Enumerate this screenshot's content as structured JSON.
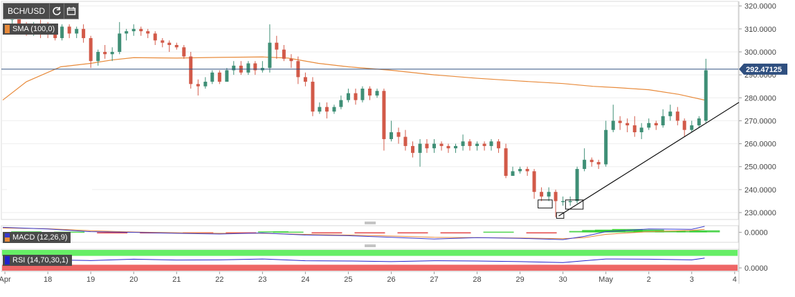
{
  "toolbar": {
    "symbol": "BCH/USD",
    "reload_icon": "refresh-icon",
    "calendar_icon": "calendar-icon"
  },
  "indicators": {
    "sma_label": "SMA (100,0)",
    "macd_label": "MACD (12,26,9)",
    "rsi_label": "RSI (14,70,30,1)"
  },
  "colors": {
    "up": "#3f8f76",
    "down": "#d25a49",
    "sma": "#e88a3a",
    "price_line": "#2f4f7f",
    "macd_line": "#3838cc",
    "signal_line": "#e88a3a",
    "hist_pos": "#33cc33",
    "hist_neg": "#dd2222",
    "rsi_line": "#2222cc",
    "rsi_top": "#66ee66",
    "rsi_bottom": "#ee6666"
  },
  "chart_data": {
    "type": "candlestick",
    "title": "BCH/USD",
    "price_axis": {
      "ticks": [
        "320.0000",
        "310.0000",
        "300.0000",
        "290.0000",
        "280.0000",
        "270.0000",
        "260.0000",
        "250.0000",
        "240.0000",
        "230.0000"
      ],
      "tick_values": [
        320,
        310,
        300,
        290,
        280,
        270,
        260,
        250,
        240,
        230
      ],
      "ylim": [
        227,
        322
      ]
    },
    "current_price": {
      "value": 292.47125,
      "label": "292.47125"
    },
    "x_axis": {
      "labels": [
        "Apr",
        "18",
        "19",
        "20",
        "21",
        "22",
        "23",
        "24",
        "25",
        "26",
        "27",
        "28",
        "29",
        "30",
        "May",
        "2",
        "3",
        "4"
      ],
      "label_x": [
        17,
        18,
        19,
        20,
        21,
        22,
        23,
        24,
        25,
        26,
        27,
        28,
        29,
        30,
        31,
        32,
        33,
        34
      ],
      "xlim": [
        16.95,
        34.1
      ]
    },
    "candles": [
      [
        17.0,
        316,
        317,
        314,
        319
      ],
      [
        17.17,
        314,
        316,
        312,
        317
      ],
      [
        17.33,
        316,
        312,
        310,
        317
      ],
      [
        17.5,
        312,
        310,
        307,
        313
      ],
      [
        17.67,
        310,
        312,
        307,
        313
      ],
      [
        17.83,
        312,
        309,
        306,
        314
      ],
      [
        18.0,
        311,
        308,
        306,
        313
      ],
      [
        18.17,
        308,
        306,
        305,
        310
      ],
      [
        18.33,
        306,
        311,
        305,
        312
      ],
      [
        18.5,
        311,
        308,
        306,
        312
      ],
      [
        18.67,
        308,
        310,
        306,
        311
      ],
      [
        18.83,
        310,
        306,
        304,
        312
      ],
      [
        19.0,
        306,
        296,
        293,
        307
      ],
      [
        19.17,
        296,
        300,
        294,
        301
      ],
      [
        19.33,
        300,
        299,
        297,
        303
      ],
      [
        19.5,
        299,
        300,
        296,
        302
      ],
      [
        19.67,
        300,
        308,
        299,
        313
      ],
      [
        19.83,
        308,
        309,
        305,
        310
      ],
      [
        20.0,
        309,
        310,
        307,
        312
      ],
      [
        20.17,
        310,
        309,
        307,
        311
      ],
      [
        20.33,
        309,
        308,
        306,
        310
      ],
      [
        20.5,
        308,
        305,
        303,
        309
      ],
      [
        20.67,
        305,
        304,
        302,
        306
      ],
      [
        20.83,
        304,
        303,
        300,
        305
      ],
      [
        21.0,
        303,
        302,
        301,
        304
      ],
      [
        21.17,
        302,
        298,
        297,
        303
      ],
      [
        21.33,
        298,
        286,
        284,
        300
      ],
      [
        21.5,
        286,
        285,
        281,
        288
      ],
      [
        21.67,
        285,
        287,
        284,
        289
      ],
      [
        21.83,
        287,
        291,
        286,
        292
      ],
      [
        22.0,
        291,
        287,
        286,
        292
      ],
      [
        22.17,
        287,
        292,
        287,
        293
      ],
      [
        22.33,
        292,
        294,
        290,
        296
      ],
      [
        22.5,
        294,
        291,
        290,
        296
      ],
      [
        22.67,
        291,
        295,
        290,
        296
      ],
      [
        22.83,
        295,
        292,
        290,
        296
      ],
      [
        23.0,
        292,
        293,
        291,
        296
      ],
      [
        23.17,
        293,
        304,
        291,
        312
      ],
      [
        23.33,
        304,
        301,
        297,
        307
      ],
      [
        23.5,
        301,
        297,
        296,
        303
      ],
      [
        23.67,
        297,
        296,
        293,
        299
      ],
      [
        23.83,
        296,
        289,
        286,
        298
      ],
      [
        24.0,
        289,
        287,
        285,
        291
      ],
      [
        24.17,
        287,
        274,
        272,
        289
      ],
      [
        24.33,
        274,
        276,
        273,
        278
      ],
      [
        24.5,
        276,
        274,
        271,
        278
      ],
      [
        24.67,
        274,
        276,
        273,
        277
      ],
      [
        24.83,
        276,
        279,
        275,
        281
      ],
      [
        25.0,
        279,
        282,
        278,
        284
      ],
      [
        25.17,
        282,
        279,
        277,
        284
      ],
      [
        25.33,
        279,
        284,
        278,
        285
      ],
      [
        25.5,
        284,
        281,
        279,
        285
      ],
      [
        25.67,
        281,
        283,
        280,
        284
      ],
      [
        25.83,
        283,
        262,
        257,
        284
      ],
      [
        26.0,
        262,
        265,
        261,
        270
      ],
      [
        26.17,
        265,
        263,
        260,
        267
      ],
      [
        26.33,
        263,
        259,
        257,
        266
      ],
      [
        26.5,
        259,
        256,
        254,
        261
      ],
      [
        26.67,
        256,
        260,
        250,
        262
      ],
      [
        26.83,
        260,
        258,
        256,
        262
      ],
      [
        27.0,
        258,
        260,
        256,
        262
      ],
      [
        27.17,
        260,
        259,
        257,
        261
      ],
      [
        27.33,
        259,
        258,
        256,
        260
      ],
      [
        27.5,
        258,
        259,
        256,
        260
      ],
      [
        27.67,
        259,
        261,
        257,
        264
      ],
      [
        27.83,
        261,
        259,
        257,
        262
      ],
      [
        28.0,
        259,
        260,
        257,
        261
      ],
      [
        28.17,
        260,
        259,
        257,
        261
      ],
      [
        28.33,
        259,
        261,
        257,
        262
      ],
      [
        28.5,
        261,
        258,
        256,
        262
      ],
      [
        28.67,
        258,
        246,
        245,
        260
      ],
      [
        28.83,
        246,
        248,
        246,
        250
      ],
      [
        29.0,
        248,
        249,
        247,
        250
      ],
      [
        29.17,
        249,
        248,
        246,
        250
      ],
      [
        29.33,
        248,
        239,
        236,
        249
      ],
      [
        29.5,
        239,
        237,
        235,
        241
      ],
      [
        29.67,
        237,
        239,
        235,
        241
      ],
      [
        29.83,
        239,
        235,
        228,
        240
      ],
      [
        30.0,
        235,
        235,
        233,
        237
      ],
      [
        30.17,
        235,
        235,
        233,
        237
      ],
      [
        30.33,
        235,
        249,
        234,
        250
      ],
      [
        30.5,
        249,
        253,
        248,
        258
      ],
      [
        30.67,
        253,
        252,
        250,
        254
      ],
      [
        30.83,
        252,
        251,
        249,
        253
      ],
      [
        31.0,
        251,
        266,
        250,
        270
      ],
      [
        31.17,
        266,
        270,
        265,
        277
      ],
      [
        31.33,
        270,
        269,
        266,
        272
      ],
      [
        31.5,
        269,
        268,
        265,
        271
      ],
      [
        31.67,
        268,
        265,
        263,
        272
      ],
      [
        31.83,
        265,
        267,
        262,
        269
      ],
      [
        32.0,
        267,
        269,
        266,
        271
      ],
      [
        32.17,
        269,
        268,
        266,
        270
      ],
      [
        32.33,
        268,
        272,
        267,
        275
      ],
      [
        32.5,
        272,
        274,
        270,
        277
      ],
      [
        32.67,
        274,
        270,
        268,
        276
      ],
      [
        32.83,
        270,
        266,
        263,
        271
      ],
      [
        33.0,
        266,
        268,
        265,
        270
      ],
      [
        33.17,
        268,
        271,
        267,
        272
      ],
      [
        33.33,
        270,
        292,
        269,
        297
      ]
    ],
    "sma": {
      "name": "SMA (100,0)",
      "points": [
        [
          16.95,
          279
        ],
        [
          17.5,
          287
        ],
        [
          18.3,
          293.5
        ],
        [
          19.0,
          295
        ],
        [
          19.5,
          296.5
        ],
        [
          20.0,
          297.5
        ],
        [
          21.0,
          297.3
        ],
        [
          22.0,
          297.6
        ],
        [
          23.0,
          297.8
        ],
        [
          23.6,
          297.3
        ],
        [
          24.3,
          295
        ],
        [
          25.0,
          293.5
        ],
        [
          26.0,
          292
        ],
        [
          27.0,
          290
        ],
        [
          28.0,
          288.5
        ],
        [
          29.0,
          287.3
        ],
        [
          30.0,
          286.2
        ],
        [
          30.7,
          285
        ],
        [
          31.2,
          284.5
        ],
        [
          32.0,
          283.5
        ],
        [
          32.7,
          281.5
        ],
        [
          33.3,
          279
        ]
      ]
    },
    "trendline": {
      "points": [
        [
          29.9,
          228.5
        ],
        [
          34.1,
          278
        ]
      ]
    },
    "annotations": [
      {
        "x0": 29.42,
        "x1": 29.75,
        "y0": 232,
        "y1": 235.5
      },
      {
        "x0": 29.85,
        "x1": 30.02,
        "y0": 227.5,
        "y1": 230
      },
      {
        "x0": 30.06,
        "x1": 30.47,
        "y0": 231.5,
        "y1": 235.5
      }
    ],
    "macd": {
      "label": "MACD (12,26,9)",
      "tick": "0.0000",
      "tick_value": 0,
      "ylim": [
        -3,
        2
      ],
      "macd_line": [
        [
          16.95,
          1.5
        ],
        [
          18,
          1.0
        ],
        [
          19,
          0.2
        ],
        [
          20,
          0.0
        ],
        [
          21,
          -0.3
        ],
        [
          22,
          -0.5
        ],
        [
          23,
          -0.2
        ],
        [
          24,
          -0.8
        ],
        [
          25,
          -1.0
        ],
        [
          26,
          -1.5
        ],
        [
          27,
          -2.0
        ],
        [
          28,
          -1.6
        ],
        [
          29,
          -1.8
        ],
        [
          30,
          -2.2
        ],
        [
          30.5,
          -1.2
        ],
        [
          31,
          0.2
        ],
        [
          32,
          1.0
        ],
        [
          33,
          0.9
        ],
        [
          33.3,
          1.8
        ]
      ],
      "signal_line": [
        [
          16.95,
          1.3
        ],
        [
          18,
          1.1
        ],
        [
          19,
          0.5
        ],
        [
          20,
          0.1
        ],
        [
          21,
          -0.1
        ],
        [
          22,
          -0.3
        ],
        [
          23,
          -0.3
        ],
        [
          24,
          -0.6
        ],
        [
          25,
          -0.8
        ],
        [
          26,
          -1.1
        ],
        [
          27,
          -1.5
        ],
        [
          28,
          -1.6
        ],
        [
          29,
          -1.7
        ],
        [
          30,
          -1.9
        ],
        [
          30.5,
          -1.6
        ],
        [
          31,
          -0.6
        ],
        [
          32,
          0.2
        ],
        [
          33,
          0.6
        ],
        [
          33.3,
          0.9
        ]
      ],
      "histogram": [
        [
          17.5,
          0.3
        ],
        [
          18.5,
          0.2
        ],
        [
          19.5,
          -0.2
        ],
        [
          20.5,
          -0.1
        ],
        [
          21.5,
          -0.2
        ],
        [
          22.5,
          -0.1
        ],
        [
          23.25,
          0.3
        ],
        [
          23.6,
          0.2
        ],
        [
          24.5,
          -0.2
        ],
        [
          25.5,
          -0.2
        ],
        [
          26.5,
          -0.3
        ],
        [
          27.5,
          -0.2
        ],
        [
          28.5,
          0.2
        ],
        [
          29.5,
          -0.1
        ],
        [
          30.5,
          0.4
        ],
        [
          30.8,
          0.7
        ],
        [
          31.1,
          0.8
        ],
        [
          31.5,
          1.0
        ],
        [
          32.0,
          0.8
        ],
        [
          32.5,
          0.5
        ],
        [
          33.0,
          0.4
        ],
        [
          33.3,
          0.6
        ]
      ]
    },
    "rsi": {
      "label": "RSI (14,70,30,1)",
      "tick": "0.0000",
      "tick_value": 0,
      "upper": 70,
      "lower": 30,
      "ylim": [
        0,
        100
      ],
      "line": [
        [
          16.95,
          50
        ],
        [
          18,
          52
        ],
        [
          19,
          49
        ],
        [
          20,
          55
        ],
        [
          21,
          51
        ],
        [
          22,
          52
        ],
        [
          23,
          56
        ],
        [
          24,
          48
        ],
        [
          25,
          47
        ],
        [
          26,
          44
        ],
        [
          27,
          48
        ],
        [
          28,
          47
        ],
        [
          29,
          44
        ],
        [
          30,
          40
        ],
        [
          30.5,
          48
        ],
        [
          31,
          56
        ],
        [
          32,
          55
        ],
        [
          33,
          52
        ],
        [
          33.3,
          60
        ]
      ]
    }
  }
}
